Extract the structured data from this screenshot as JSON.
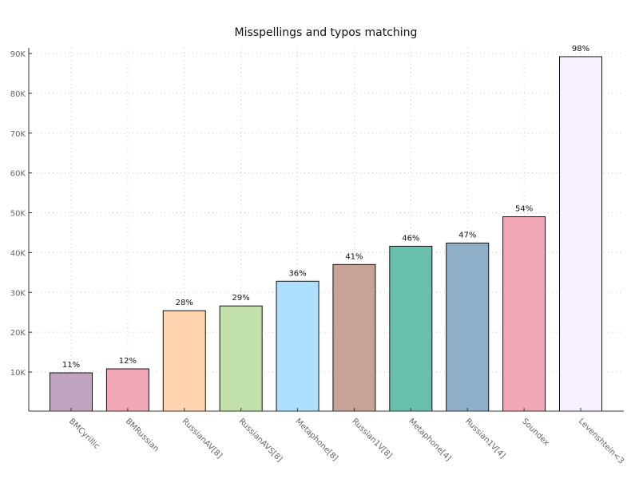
{
  "chart_data": {
    "type": "bar",
    "title": "Misspellings and typos matching",
    "xlabel": "",
    "ylabel": "",
    "categories": [
      "BMCyrillic",
      "BMRussian",
      "RussianAV[8]",
      "RussianAVS[8]",
      "Metaphone[8]",
      "Russian1V[8]",
      "Metaphone[4]",
      "Russian1V[4]",
      "Soundex",
      "Levenshtein<3"
    ],
    "values": [
      9800,
      10800,
      25400,
      26600,
      32800,
      37000,
      41600,
      42400,
      49000,
      89200
    ],
    "data_labels": [
      "11%",
      "12%",
      "28%",
      "29%",
      "36%",
      "41%",
      "46%",
      "47%",
      "54%",
      "98%"
    ],
    "colors": [
      "#c1a4bf",
      "#f2a7b7",
      "#ffd4af",
      "#c2e0ab",
      "#abe0ff",
      "#c8a498",
      "#68bfab",
      "#8faec8",
      "#f2a7b7",
      "#f8f0ff"
    ],
    "ylim": [
      0,
      90000
    ],
    "yticks": [
      10000,
      20000,
      30000,
      40000,
      50000,
      60000,
      70000,
      80000,
      90000
    ],
    "ytick_labels": [
      "10K",
      "20K",
      "30K",
      "40K",
      "50K",
      "60K",
      "70K",
      "80K",
      "90K"
    ],
    "grid": true,
    "legend": "none"
  }
}
